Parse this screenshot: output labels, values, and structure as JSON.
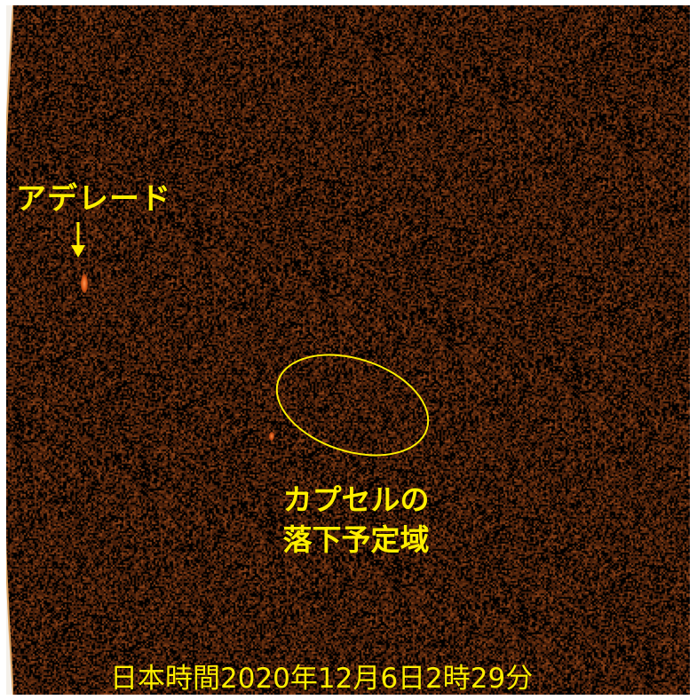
{
  "image": {
    "subject": "night-sky-capsule-reentry-observation",
    "colors": {
      "background": "#2a1208",
      "label": "#ffee00",
      "highlight": "#ff8c40"
    }
  },
  "labels": {
    "adelaide": "アデレード",
    "drop_zone_line1": "カプセルの",
    "drop_zone_line2": "落下予定域",
    "timestamp": "日本時間2020年12月6日2時29分"
  },
  "icons": {
    "adelaide_pointer": "down-arrow-icon"
  }
}
